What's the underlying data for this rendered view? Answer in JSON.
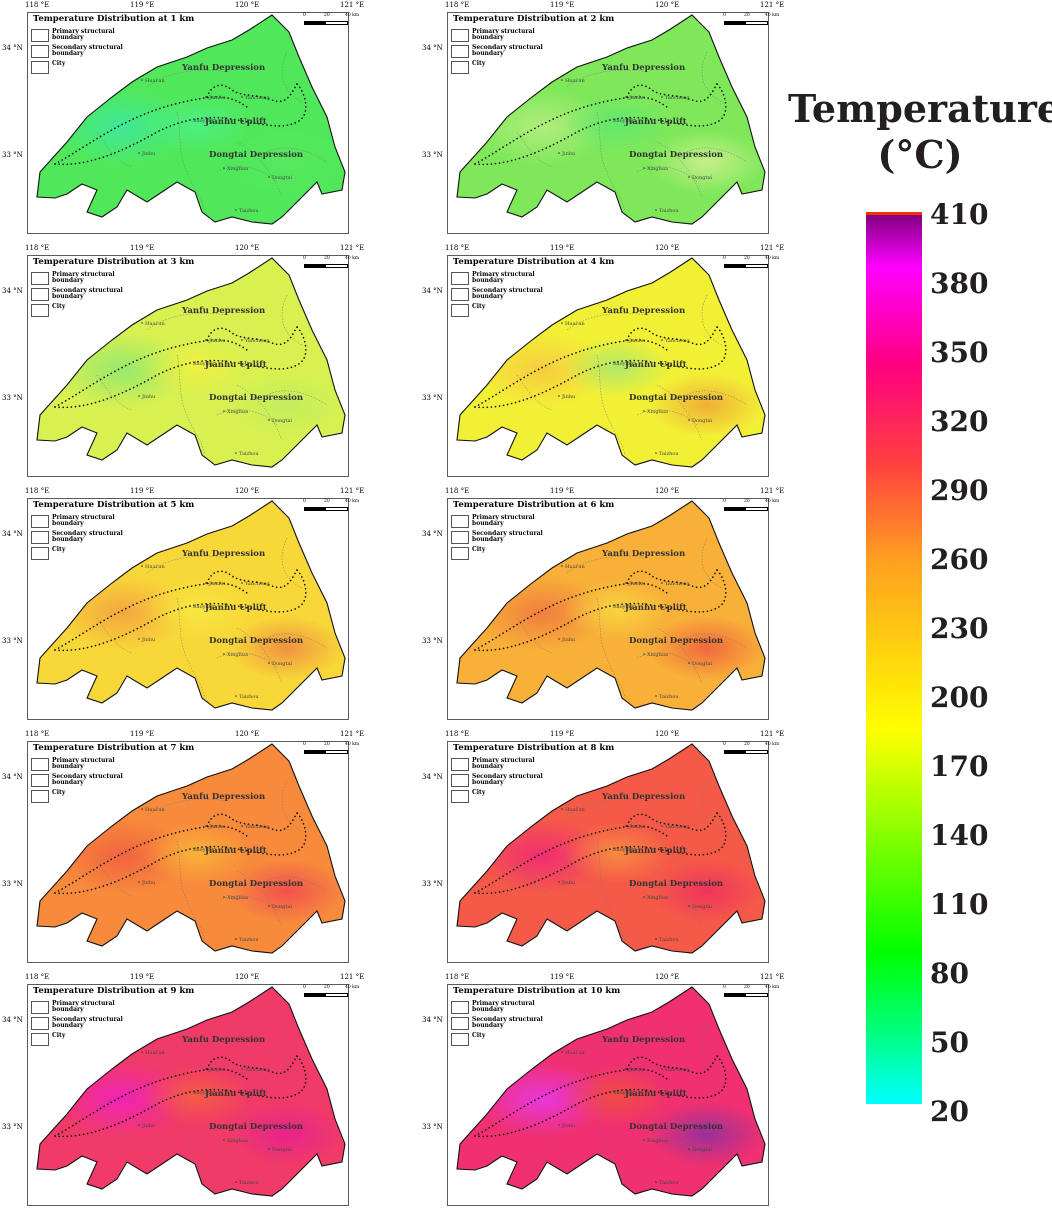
{
  "panels": [
    {
      "title": "Temperature Distribution at 1 km",
      "depth_km": 1
    },
    {
      "title": "Temperature Distribution at 2 km",
      "depth_km": 2
    },
    {
      "title": "Temperature Distribution at 3 km",
      "depth_km": 3
    },
    {
      "title": "Temperature Distribution at 4 km",
      "depth_km": 4
    },
    {
      "title": "Temperature Distribution at 5 km",
      "depth_km": 5
    },
    {
      "title": "Temperature Distribution at 6 km",
      "depth_km": 6
    },
    {
      "title": "Temperature Distribution at 7 km",
      "depth_km": 7
    },
    {
      "title": "Temperature Distribution at 8 km",
      "depth_km": 8
    },
    {
      "title": "Temperature Distribution at 9 km",
      "depth_km": 9
    },
    {
      "title": "Temperature Distribution at 10 km",
      "depth_km": 10
    }
  ],
  "panel_fills": [
    {
      "base": "#50e85a",
      "spots": [
        "#3ee8a0",
        "#4df088",
        "#58e860"
      ]
    },
    {
      "base": "#7fe85a",
      "spots": [
        "#b8ee80",
        "#5ee870",
        "#d0f090"
      ]
    },
    {
      "base": "#d8f050",
      "spots": [
        "#90e870",
        "#f0f040",
        "#c0ee60"
      ]
    },
    {
      "base": "#f2f035",
      "spots": [
        "#f8c840",
        "#a8e870",
        "#f0a838"
      ]
    },
    {
      "base": "#f8d838",
      "spots": [
        "#f4a040",
        "#f8e840",
        "#f08a40"
      ]
    },
    {
      "base": "#f8b038",
      "spots": [
        "#f07840",
        "#f8d840",
        "#f06040"
      ]
    },
    {
      "base": "#f88a3c",
      "spots": [
        "#f06040",
        "#f8b838",
        "#f04a50"
      ]
    },
    {
      "base": "#f55a48",
      "spots": [
        "#f02878",
        "#f89040",
        "#f03060"
      ]
    },
    {
      "base": "#f03a68",
      "spots": [
        "#f020c0",
        "#f86040",
        "#e82090"
      ]
    },
    {
      "base": "#f03070",
      "spots": [
        "#e838e8",
        "#f05040",
        "#9030a0"
      ]
    }
  ],
  "legend": {
    "primary": "Primary structural boundary",
    "secondary": "Secondary structural boundary",
    "city": "City"
  },
  "scale": {
    "labels": [
      "0",
      "20",
      "40 km"
    ]
  },
  "longitudes": [
    "118 °E",
    "119 °E",
    "120 °E",
    "121 °E"
  ],
  "latitudes": [
    "34 °N",
    "33 °N"
  ],
  "regions": {
    "yanfu": "Yanfu Depression",
    "jianhu": "Jianhu Uplift",
    "dongtai": "Dongtai Depression"
  },
  "cities": [
    "Huai'an",
    "Jianhu",
    "Yancheng",
    "Baoying",
    "Jinhu",
    "Xinghua",
    "Dongtai",
    "Taizhou"
  ],
  "colorbar": {
    "title": "Temperature (°C)",
    "ticks": [
      "410",
      "380",
      "350",
      "320",
      "290",
      "260",
      "230",
      "200",
      "170",
      "140",
      "110",
      "80",
      "50",
      "20"
    ],
    "range": [
      20,
      410
    ],
    "colors": [
      "#00ffff",
      "#00ff00",
      "#ffff00",
      "#ffa020",
      "#ff4040",
      "#ff0080",
      "#ff00ff",
      "#800080"
    ]
  }
}
